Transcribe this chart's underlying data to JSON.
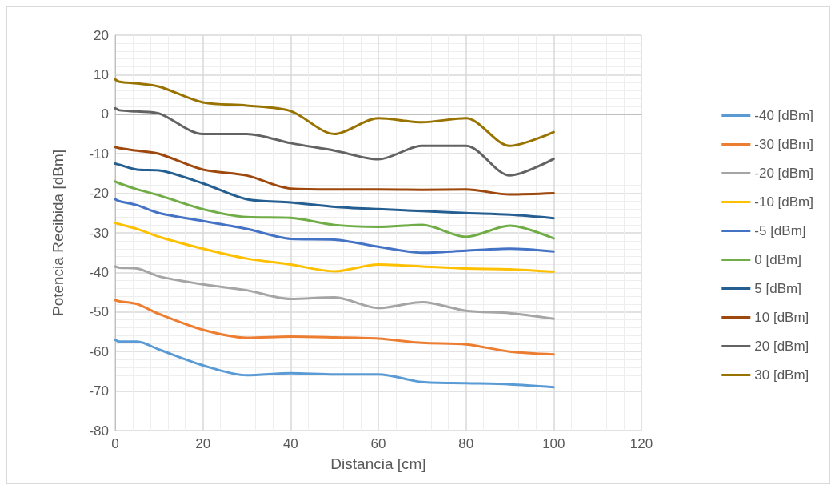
{
  "chart_data": {
    "type": "line",
    "xlabel": "Distancia [cm]",
    "ylabel": "Potencia Recibida [dBm]",
    "x": [
      0,
      1,
      5,
      10,
      20,
      30,
      40,
      50,
      60,
      70,
      80,
      90,
      100
    ],
    "xlim": [
      0,
      120
    ],
    "xticks": [
      0,
      20,
      40,
      60,
      80,
      100,
      120
    ],
    "ylim": [
      -80,
      20
    ],
    "yticks": [
      -80,
      -70,
      -60,
      -50,
      -40,
      -30,
      -20,
      -10,
      0,
      10,
      20
    ],
    "grid": true,
    "legend": "right",
    "marker": "none",
    "line_style": "solid",
    "series": [
      {
        "name": "-40 [dBm]",
        "color": "#5b9bd5",
        "values": [
          -57,
          -57.5,
          -57.5,
          -59.5,
          -63.5,
          -66,
          -65.5,
          -65.8,
          -65.8,
          -67.7,
          -68,
          -68.3,
          -69
        ]
      },
      {
        "name": "-30 [dBm]",
        "color": "#ed7d31",
        "values": [
          -47,
          -47.3,
          -48,
          -50.5,
          -54.5,
          -56.5,
          -56.2,
          -56.4,
          -56.7,
          -57.8,
          -58.2,
          -60,
          -60.7
        ]
      },
      {
        "name": "-20 [dBm]",
        "color": "#a5a5a5",
        "values": [
          -38.5,
          -38.8,
          -39,
          -41,
          -43,
          -44.5,
          -46.7,
          -46.3,
          -49,
          -47.5,
          -49.7,
          -50.3,
          -51.7
        ]
      },
      {
        "name": "-10 [dBm]",
        "color": "#ffc000",
        "values": [
          -27.5,
          -27.8,
          -29,
          -31,
          -34,
          -36.5,
          -38,
          -39.7,
          -38,
          -38.5,
          -39,
          -39.2,
          -39.8
        ]
      },
      {
        "name": "-5 [dBm]",
        "color": "#4472c4",
        "values": [
          -21.5,
          -22,
          -23,
          -25,
          -27,
          -29,
          -31.5,
          -31.7,
          -33.5,
          -35,
          -34.5,
          -34,
          -34.7
        ]
      },
      {
        "name": "0 [dBm]",
        "color": "#70ad47",
        "values": [
          -17,
          -17.5,
          -19,
          -20.5,
          -24,
          -26,
          -26.2,
          -28,
          -28.5,
          -28,
          -31,
          -28.2,
          -31.4
        ]
      },
      {
        "name": "5 [dBm]",
        "color": "#255e91",
        "values": [
          -12.5,
          -12.8,
          -14,
          -14.2,
          -17.5,
          -21.5,
          -22.3,
          -23.4,
          -24,
          -24.5,
          -25,
          -25.4,
          -26.3
        ]
      },
      {
        "name": "10 [dBm]",
        "color": "#9e480e",
        "values": [
          -8.3,
          -8.6,
          -9.2,
          -10,
          -14,
          -15.5,
          -18.8,
          -19,
          -19,
          -19.1,
          -19,
          -20.3,
          -20
        ]
      },
      {
        "name": "20 [dBm]",
        "color": "#636363",
        "values": [
          1.5,
          1,
          0.7,
          0.2,
          -5,
          -5,
          -7.3,
          -9.2,
          -11.4,
          -8,
          -8,
          -15.5,
          -11.3
        ]
      },
      {
        "name": "30 [dBm]",
        "color": "#997300",
        "values": [
          8.8,
          8.2,
          7.8,
          7,
          3,
          2.2,
          0.8,
          -5,
          -1,
          -2,
          -1,
          -8,
          -4.5
        ]
      }
    ]
  }
}
